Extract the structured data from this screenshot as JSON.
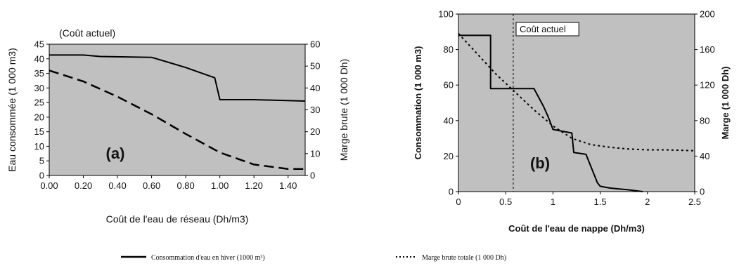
{
  "chart_data": [
    {
      "type": "line",
      "panel_label": "(a)",
      "annotation": "(Coût actuel)",
      "xlabel": "Coût de l'eau de réseau (Dh/m3)",
      "ylabel": "Eau consommée  (1 000 m3)",
      "y2label": "Marge brute (1 000 Dh)",
      "xlim": [
        0,
        1.5
      ],
      "ylim": [
        0,
        45
      ],
      "y2lim": [
        0,
        60
      ],
      "x_ticks": [
        "0.00",
        "0.20",
        "0.40",
        "0.60",
        "0.80",
        "1.00",
        "1.20",
        "1.40"
      ],
      "y_ticks": [
        "0",
        "5",
        "10",
        "15",
        "20",
        "25",
        "30",
        "35",
        "40",
        "45"
      ],
      "y2_ticks": [
        "0",
        "10",
        "20",
        "30",
        "40",
        "50",
        "60"
      ],
      "grid": false,
      "series": [
        {
          "axis": "left",
          "style": "solid",
          "x": [
            0.0,
            0.2,
            0.3,
            0.6,
            0.8,
            0.97,
            1.0,
            1.2,
            1.5
          ],
          "y": [
            41.3,
            41.3,
            40.8,
            40.5,
            37.0,
            33.5,
            26.0,
            26.0,
            25.5
          ]
        },
        {
          "axis": "right",
          "style": "dashed",
          "x": [
            0.0,
            0.2,
            0.4,
            0.6,
            0.8,
            1.0,
            1.2,
            1.4,
            1.5
          ],
          "y": [
            48,
            43,
            36,
            28,
            19,
            10.5,
            5,
            3,
            3
          ]
        }
      ]
    },
    {
      "type": "line",
      "panel_label": "(b)",
      "annotation": "Coût actuel",
      "xlabel": "Coût de l'eau de nappe (Dh/m3)",
      "ylabel": "Consommation (1 000 m3)",
      "y2label": "Marge (1 000 Dh)",
      "xlim": [
        0,
        2.5
      ],
      "ylim": [
        0,
        100
      ],
      "y2lim": [
        0,
        200
      ],
      "vline_x": 0.58,
      "x_ticks": [
        "0",
        "0.5",
        "1",
        "1.5",
        "2",
        "2.5"
      ],
      "y_ticks": [
        "0",
        "20",
        "40",
        "60",
        "80",
        "100"
      ],
      "y2_ticks": [
        "0",
        "40",
        "80",
        "120",
        "160",
        "200"
      ],
      "grid": false,
      "series": [
        {
          "axis": "left",
          "style": "solid",
          "x": [
            0,
            0.34,
            0.34,
            0.8,
            0.85,
            0.9,
            0.95,
            1.0,
            1.1,
            1.2,
            1.22,
            1.35,
            1.47,
            1.5,
            1.6,
            1.8,
            1.95
          ],
          "y": [
            88,
            88,
            58,
            58,
            53,
            48,
            42,
            35,
            34,
            33,
            22,
            21,
            5,
            3,
            2,
            1,
            0
          ]
        },
        {
          "axis": "right",
          "style": "dotted",
          "x": [
            0,
            0.2,
            0.4,
            0.6,
            0.8,
            1.0,
            1.2,
            1.4,
            1.6,
            1.8,
            2.0,
            2.2,
            2.5
          ],
          "y": [
            178,
            155,
            132,
            112,
            92,
            74,
            60,
            53,
            50,
            48,
            47,
            47,
            46
          ]
        }
      ]
    }
  ],
  "legend": {
    "solid_label": "Consommation d'eau en hiver (1000 m³)",
    "dotted_label": "Marge brute totale (1 000 Dh)"
  }
}
